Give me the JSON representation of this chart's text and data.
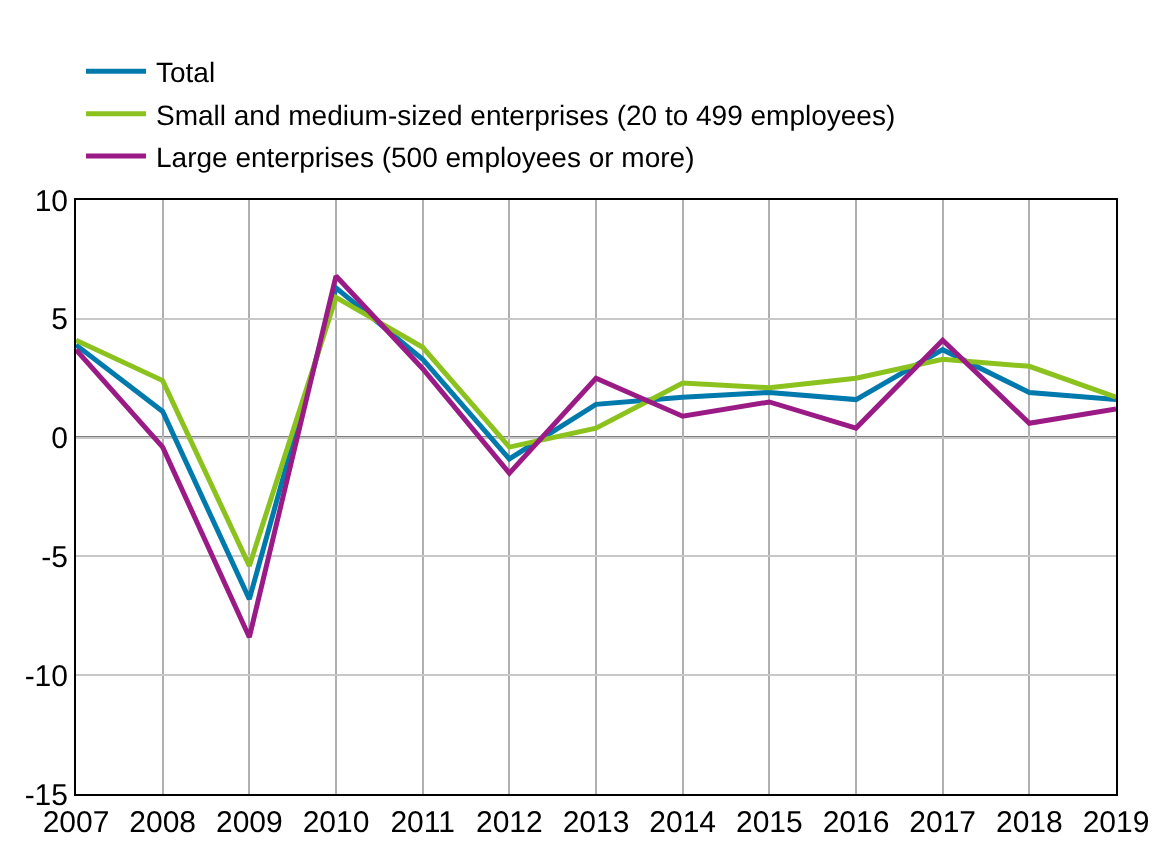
{
  "chart_data": {
    "type": "line",
    "x": [
      2007,
      2008,
      2009,
      2010,
      2011,
      2012,
      2013,
      2014,
      2015,
      2016,
      2017,
      2018,
      2019
    ],
    "series": [
      {
        "name": "Total",
        "color": "#0079ad",
        "values": [
          3.9,
          1.1,
          -6.8,
          6.3,
          3.3,
          -0.9,
          1.4,
          1.7,
          1.9,
          1.6,
          3.7,
          1.9,
          1.6
        ]
      },
      {
        "name": "Small and medium-sized enterprises (20 to 499 employees)",
        "color": "#8cc21e",
        "values": [
          4.1,
          2.4,
          -5.4,
          5.9,
          3.8,
          -0.4,
          0.4,
          2.3,
          2.1,
          2.5,
          3.3,
          3.0,
          1.7
        ]
      },
      {
        "name": "Large enterprises (500 employees or more)",
        "color": "#9b1b86",
        "values": [
          3.7,
          -0.4,
          -8.4,
          6.8,
          2.9,
          -1.5,
          2.5,
          0.9,
          1.5,
          0.4,
          4.1,
          0.6,
          1.2
        ]
      }
    ],
    "xlim": [
      2007,
      2019
    ],
    "xticks": [
      2007,
      2008,
      2009,
      2010,
      2011,
      2012,
      2013,
      2014,
      2015,
      2016,
      2017,
      2018,
      2019
    ],
    "ylim": [
      -15,
      10
    ],
    "yticks": [
      -15,
      -10,
      -5,
      0,
      5,
      10
    ],
    "ref_lines": [
      {
        "axis": "y",
        "value": 0,
        "color": "#000000"
      }
    ],
    "grid": true,
    "legend": "top left",
    "marker": "none",
    "line_style": "solid"
  }
}
